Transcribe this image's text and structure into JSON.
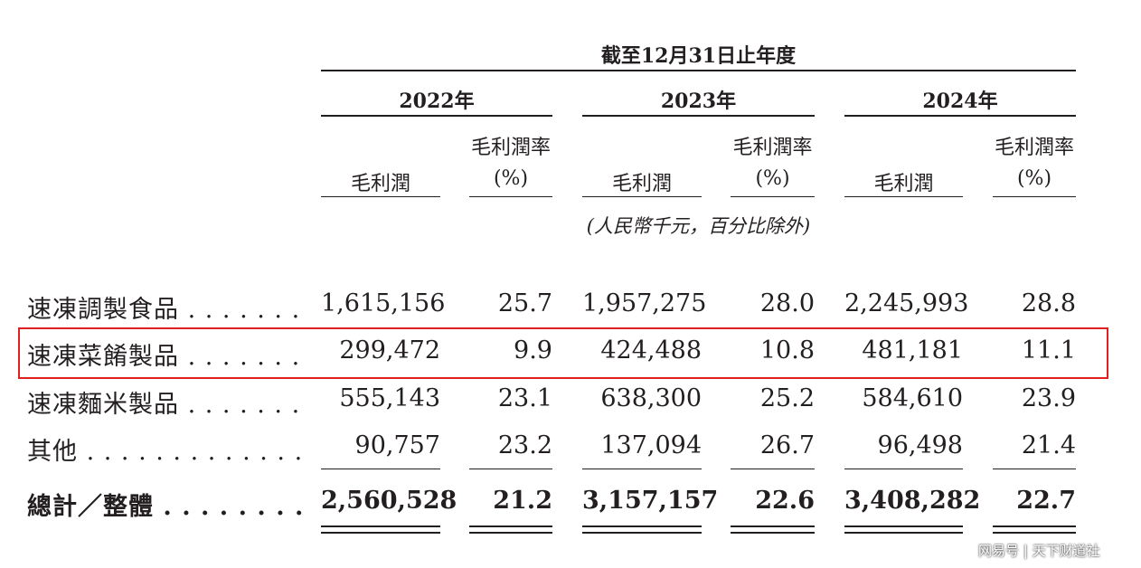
{
  "header": {
    "period_title": "截至12月31日止年度",
    "years": [
      "2022年",
      "2023年",
      "2024年"
    ],
    "col_gross_profit": "毛利潤",
    "col_margin_line1": "毛利潤率",
    "col_margin_line2": "(%)",
    "unit_note": "(人民幣千元，百分比除外)"
  },
  "rows": [
    {
      "label": "速凍調製食品",
      "dots": ". . . . . . .",
      "values": [
        "1,615,156",
        "25.7",
        "1,957,275",
        "28.0",
        "2,245,993",
        "28.8"
      ]
    },
    {
      "label": "速凍菜餚製品",
      "dots": ". . . . . . .",
      "values": [
        "299,472",
        "9.9",
        "424,488",
        "10.8",
        "481,181",
        "11.1"
      ]
    },
    {
      "label": "速凍麵米製品",
      "dots": ". . . . . . .",
      "values": [
        "555,143",
        "23.1",
        "638,300",
        "25.2",
        "584,610",
        "23.9"
      ]
    },
    {
      "label": "其他",
      "dots": ". . . . . . . . . . . . .",
      "values": [
        "90,757",
        "23.2",
        "137,094",
        "26.7",
        "96,498",
        "21.4"
      ]
    }
  ],
  "total": {
    "label": "總計／整體",
    "dots": ". . . . . . . .",
    "values": [
      "2,560,528",
      "21.2",
      "3,157,157",
      "22.6",
      "3,408,282",
      "22.7"
    ]
  },
  "highlight_color": "#e02020",
  "watermark": "网易号 | 天下财道社"
}
